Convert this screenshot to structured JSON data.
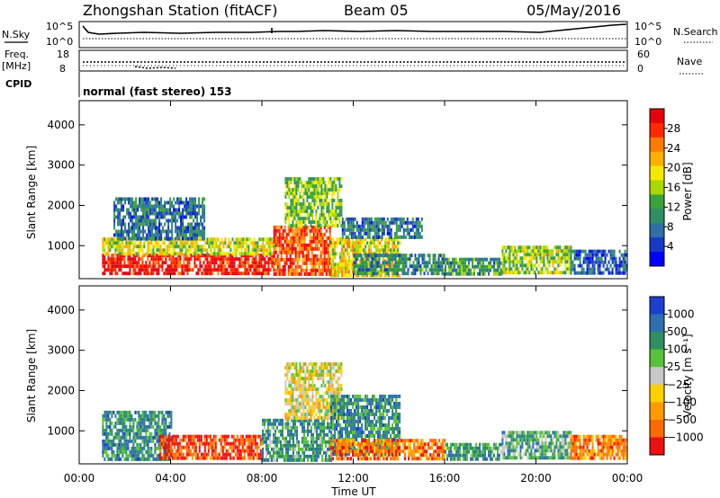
{
  "header": {
    "station": "Zhongshan Station (fitACF)",
    "beam": "Beam 05",
    "date": "05/May/2016"
  },
  "summary_panels": {
    "nsky_label": "N.Sky",
    "nsky_ticks": [
      "10^5",
      "10^0"
    ],
    "nsearch_label": "N.Search",
    "nsearch_ticks": [
      "10^5",
      "10^0"
    ],
    "freq_label": "Freq.",
    "freq_unit": "[MHz]",
    "freq_ticks": [
      "18",
      "8"
    ],
    "nave_label": "Nave",
    "nave_ticks": [
      "60",
      "0"
    ],
    "cpid_label": "CPID",
    "cpid_text": "normal (fast stereo) 153"
  },
  "chart_data": [
    {
      "type": "heatmap",
      "name": "power",
      "xlabel": "",
      "ylabel": "Slant Range [km]",
      "xlim": [
        0,
        24
      ],
      "ylim": [
        180,
        4600
      ],
      "x_tick_values": [
        0,
        4,
        8,
        12,
        16,
        20,
        24
      ],
      "y_tick_values": [
        1000,
        2000,
        3000,
        4000
      ],
      "y_tick_labels": [
        "1000",
        "2000",
        "3000",
        "4000"
      ],
      "colorbar": {
        "label": "Power [dB]",
        "ticks": [
          "28",
          "24",
          "20",
          "16",
          "12",
          "8",
          "4"
        ],
        "colors": [
          "#e8000b",
          "#ff2a00",
          "#ff7a00",
          "#ffb000",
          "#f4ea00",
          "#a8d800",
          "#3aa23a",
          "#2f8f63",
          "#2e6fa6",
          "#1838c6",
          "#0000ff"
        ]
      },
      "regions": [
        {
          "t": [
            1.0,
            8.5
          ],
          "r": [
            300,
            800
          ],
          "level": 0.95
        },
        {
          "t": [
            1.0,
            8.5
          ],
          "r": [
            800,
            1200
          ],
          "level": 0.55
        },
        {
          "t": [
            1.5,
            5.5
          ],
          "r": [
            1200,
            2200
          ],
          "level": 0.25
        },
        {
          "t": [
            8.5,
            11.0
          ],
          "r": [
            300,
            1500
          ],
          "level": 0.85
        },
        {
          "t": [
            9.0,
            11.5
          ],
          "r": [
            1500,
            2700
          ],
          "level": 0.45
        },
        {
          "t": [
            11.0,
            14.0
          ],
          "r": [
            300,
            1200
          ],
          "level": 0.6
        },
        {
          "t": [
            11.5,
            15.0
          ],
          "r": [
            1200,
            1700
          ],
          "level": 0.25
        },
        {
          "t": [
            12.0,
            16.0
          ],
          "r": [
            300,
            800
          ],
          "level": 0.3
        },
        {
          "t": [
            16.0,
            18.5
          ],
          "r": [
            300,
            700
          ],
          "level": 0.35
        },
        {
          "t": [
            18.5,
            21.5
          ],
          "r": [
            300,
            1000
          ],
          "level": 0.5
        },
        {
          "t": [
            21.5,
            24.0
          ],
          "r": [
            300,
            900
          ],
          "level": 0.2
        }
      ]
    },
    {
      "type": "heatmap",
      "name": "velocity",
      "xlabel": "Time UT",
      "ylabel": "Slant Range [km]",
      "xlim": [
        0,
        24
      ],
      "ylim": [
        180,
        4600
      ],
      "x_tick_values": [
        0,
        4,
        8,
        12,
        16,
        20,
        24
      ],
      "x_tick_labels": [
        "00:00",
        "04:00",
        "08:00",
        "12:00",
        "16:00",
        "20:00",
        "00:00"
      ],
      "y_tick_values": [
        1000,
        2000,
        3000,
        4000
      ],
      "y_tick_labels": [
        "1000",
        "2000",
        "3000",
        "4000"
      ],
      "colorbar": {
        "label": "Velocity [m s⁻¹]",
        "ticks": [
          "1000",
          "500",
          "100",
          "25",
          "−25",
          "−100",
          "−500",
          "−1000"
        ],
        "colors": [
          "#1c3fd0",
          "#2e6fb0",
          "#2f8f63",
          "#58c23a",
          "#c8c8c8",
          "#ffd000",
          "#ff9a00",
          "#ff6a00",
          "#ee1010"
        ]
      },
      "regions": [
        {
          "t": [
            1.0,
            4.0
          ],
          "r": [
            300,
            1500
          ],
          "v": 0.75
        },
        {
          "t": [
            3.5,
            8.0
          ],
          "r": [
            300,
            900
          ],
          "v": 0.1
        },
        {
          "t": [
            8.0,
            11.0
          ],
          "r": [
            300,
            1300
          ],
          "v": 0.7
        },
        {
          "t": [
            9.0,
            11.5
          ],
          "r": [
            1300,
            2700
          ],
          "v": 0.45
        },
        {
          "t": [
            11.0,
            14.0
          ],
          "r": [
            400,
            1900
          ],
          "v": 0.75
        },
        {
          "t": [
            11.0,
            16.0
          ],
          "r": [
            300,
            800
          ],
          "v": 0.2
        },
        {
          "t": [
            16.0,
            18.5
          ],
          "r": [
            300,
            700
          ],
          "v": 0.7
        },
        {
          "t": [
            18.5,
            21.5
          ],
          "r": [
            300,
            1000
          ],
          "v": 0.65
        },
        {
          "t": [
            21.5,
            24.0
          ],
          "r": [
            300,
            900
          ],
          "v": 0.25
        }
      ]
    }
  ]
}
